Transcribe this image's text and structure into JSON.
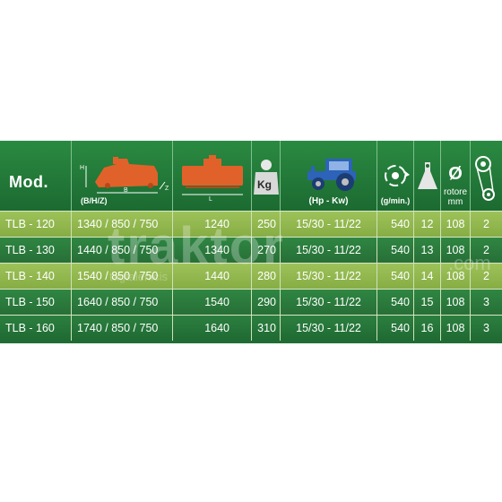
{
  "header": {
    "model_label": "Mod.",
    "dims_unit": "(B/H/Z)",
    "dim_h": "H",
    "dim_b": "B",
    "dim_z": "Z",
    "dim_l": "L",
    "weight_unit": "Kg",
    "power_unit": "(Hp - Kw)",
    "pto_unit": "(g/min.)",
    "rotor_symbol": "Ø",
    "rotor_label_1": "rotore",
    "rotor_label_2": "mm"
  },
  "watermark": {
    "brand": "traktor",
    "suffix": ".com",
    "sub": "tagtalenicis"
  },
  "colors": {
    "header_green": "#2a8a41",
    "light_row": "#9ec25a",
    "dark_row": "#2f8642",
    "machine_orange": "#e0622a",
    "tractor_blue": "#2d63b8"
  },
  "rows": [
    {
      "model": "TLB - 120",
      "dims": "1340 / 850 / 750",
      "length": "1240",
      "weight": "250",
      "power": "15/30 - 11/22",
      "pto": "540",
      "blades": "12",
      "rotor": "108",
      "belts": "2"
    },
    {
      "model": "TLB - 130",
      "dims": "1440 / 850 / 750",
      "length": "1340",
      "weight": "270",
      "power": "15/30 - 11/22",
      "pto": "540",
      "blades": "13",
      "rotor": "108",
      "belts": "2"
    },
    {
      "model": "TLB - 140",
      "dims": "1540 / 850 / 750",
      "length": "1440",
      "weight": "280",
      "power": "15/30 - 11/22",
      "pto": "540",
      "blades": "14",
      "rotor": "108",
      "belts": "2"
    },
    {
      "model": "TLB - 150",
      "dims": "1640 / 850 / 750",
      "length": "1540",
      "weight": "290",
      "power": "15/30 - 11/22",
      "pto": "540",
      "blades": "15",
      "rotor": "108",
      "belts": "3"
    },
    {
      "model": "TLB - 160",
      "dims": "1740 / 850 / 750",
      "length": "1640",
      "weight": "310",
      "power": "15/30 - 11/22",
      "pto": "540",
      "blades": "16",
      "rotor": "108",
      "belts": "3"
    }
  ]
}
